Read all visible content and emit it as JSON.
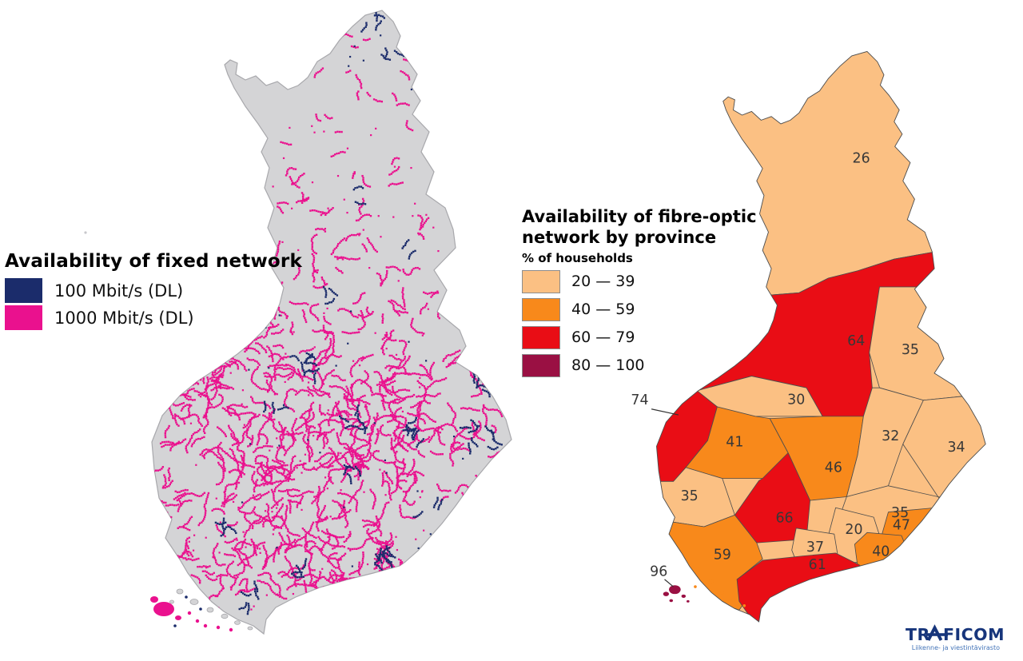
{
  "left_map": {
    "title": "Availability of fixed network",
    "land_color": "#D4D4D6",
    "border_color": "#A8A8AC",
    "legend": [
      {
        "label": "100 Mbit/s (DL)",
        "color": "#1B2C6B"
      },
      {
        "label": "1000 Mbit/s (DL)",
        "color": "#EA118E"
      }
    ]
  },
  "right_map": {
    "title_line1": "Availability of fibre-optic",
    "title_line2": "network by province",
    "subtitle": "% of households",
    "border_color": "#4D4D4D",
    "label_color": "#383838",
    "legend": [
      {
        "label": "20 — 39",
        "color": "#FBC083"
      },
      {
        "label": "40 — 59",
        "color": "#F8891B"
      },
      {
        "label": "60 — 79",
        "color": "#E90D15"
      },
      {
        "label": "80 — 100",
        "color": "#9A1043"
      }
    ]
  },
  "chart_data": {
    "type": "heatmap",
    "subtype": "choropleth-map",
    "title": "Availability of fibre-optic network by province",
    "unit": "% of households",
    "buckets": [
      {
        "range": "20 — 39",
        "color": "#FBC083"
      },
      {
        "range": "40 — 59",
        "color": "#F8891B"
      },
      {
        "range": "60 — 79",
        "color": "#E90D15"
      },
      {
        "range": "80 — 100",
        "color": "#9A1043"
      }
    ],
    "provinces": [
      {
        "id": "lapland",
        "value": 26,
        "bucket": 0
      },
      {
        "id": "north-ostrobothnia",
        "value": 64,
        "bucket": 2
      },
      {
        "id": "kainuu",
        "value": 35,
        "bucket": 0
      },
      {
        "id": "central-ostrobothnia",
        "value": 30,
        "bucket": 0
      },
      {
        "id": "ostrobothnia",
        "value": 74,
        "bucket": 2,
        "label_outside": true
      },
      {
        "id": "south-ostrobothnia",
        "value": 41,
        "bucket": 1
      },
      {
        "id": "central-finland",
        "value": 46,
        "bucket": 1
      },
      {
        "id": "north-savo",
        "value": 32,
        "bucket": 0
      },
      {
        "id": "north-karelia",
        "value": 34,
        "bucket": 0
      },
      {
        "id": "satakunta",
        "value": 35,
        "bucket": 0
      },
      {
        "id": "south-savo",
        "value": 35,
        "bucket": 0
      },
      {
        "id": "pirkanmaa",
        "value": 66,
        "bucket": 2
      },
      {
        "id": "paijat-hame",
        "value": 20,
        "bucket": 0
      },
      {
        "id": "kanta-hame",
        "value": 37,
        "bucket": 0
      },
      {
        "id": "south-karelia",
        "value": 47,
        "bucket": 1
      },
      {
        "id": "kymenlaakso",
        "value": 40,
        "bucket": 1
      },
      {
        "id": "southwest-finland",
        "value": 59,
        "bucket": 1
      },
      {
        "id": "uusimaa",
        "value": 61,
        "bucket": 2
      },
      {
        "id": "aland",
        "value": 96,
        "bucket": 3,
        "label_outside": true
      }
    ]
  },
  "branding": {
    "logo_text": "TRAFICOM",
    "tagline": "Liikenne- ja viestintävirasto",
    "logo_color": "#17357B",
    "tagline_color": "#4273B8"
  }
}
